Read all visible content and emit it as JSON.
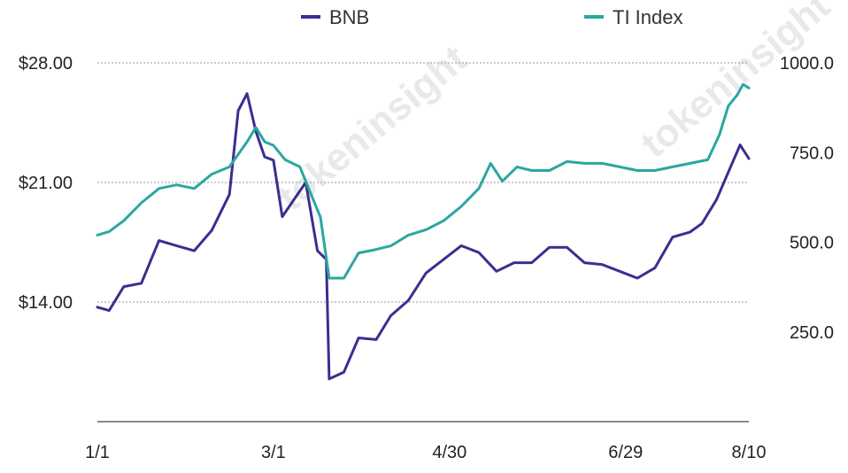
{
  "chart_data": {
    "type": "line",
    "title": "",
    "xlabel": "",
    "ylabel": "",
    "legend": {
      "placement": "top-center"
    },
    "grid": true,
    "x_ticks": [
      "1/1",
      "3/1",
      "4/30",
      "6/29",
      "8/10"
    ],
    "x_domain": [
      "1/1",
      "8/10"
    ],
    "y_left": {
      "ticks": [
        "$28.00",
        "$21.00",
        "$14.00"
      ],
      "range": [
        7,
        28
      ]
    },
    "y_right": {
      "ticks": [
        "1000.0",
        "750.0",
        "500.0",
        "250.0"
      ],
      "range": [
        0,
        1000
      ]
    },
    "series": [
      {
        "name": "BNB",
        "axis": "left",
        "color": "#3b2e8f",
        "points": [
          [
            "1/1",
            13.7
          ],
          [
            "1/5",
            13.5
          ],
          [
            "1/10",
            14.9
          ],
          [
            "1/16",
            15.1
          ],
          [
            "1/22",
            17.6
          ],
          [
            "1/28",
            17.3
          ],
          [
            "2/3",
            17.0
          ],
          [
            "2/9",
            18.2
          ],
          [
            "2/15",
            20.3
          ],
          [
            "2/18",
            25.2
          ],
          [
            "2/21",
            26.2
          ],
          [
            "2/24",
            24.0
          ],
          [
            "2/27",
            22.5
          ],
          [
            "3/1",
            22.3
          ],
          [
            "3/4",
            19.0
          ],
          [
            "3/8",
            20.0
          ],
          [
            "3/12",
            21.0
          ],
          [
            "3/16",
            17.0
          ],
          [
            "3/19",
            16.5
          ],
          [
            "3/20",
            9.5
          ],
          [
            "3/25",
            9.9
          ],
          [
            "3/30",
            11.9
          ],
          [
            "4/5",
            11.8
          ],
          [
            "4/10",
            13.2
          ],
          [
            "4/16",
            14.1
          ],
          [
            "4/22",
            15.7
          ],
          [
            "4/28",
            16.5
          ],
          [
            "5/4",
            17.3
          ],
          [
            "5/10",
            16.9
          ],
          [
            "5/16",
            15.8
          ],
          [
            "5/22",
            16.3
          ],
          [
            "5/28",
            16.3
          ],
          [
            "6/3",
            17.2
          ],
          [
            "6/9",
            17.2
          ],
          [
            "6/15",
            16.3
          ],
          [
            "6/21",
            16.2
          ],
          [
            "6/27",
            15.8
          ],
          [
            "7/3",
            15.4
          ],
          [
            "7/9",
            16.0
          ],
          [
            "7/15",
            17.8
          ],
          [
            "7/21",
            18.1
          ],
          [
            "7/25",
            18.6
          ],
          [
            "7/30",
            20.0
          ],
          [
            "8/4",
            22.0
          ],
          [
            "8/7",
            23.2
          ],
          [
            "8/10",
            22.4
          ]
        ]
      },
      {
        "name": "TI Index",
        "axis": "right",
        "color": "#2aa79f",
        "points": [
          [
            "1/1",
            520
          ],
          [
            "1/5",
            530
          ],
          [
            "1/10",
            560
          ],
          [
            "1/16",
            610
          ],
          [
            "1/22",
            650
          ],
          [
            "1/28",
            660
          ],
          [
            "2/3",
            650
          ],
          [
            "2/9",
            690
          ],
          [
            "2/15",
            710
          ],
          [
            "2/21",
            780
          ],
          [
            "2/24",
            820
          ],
          [
            "2/27",
            780
          ],
          [
            "3/1",
            770
          ],
          [
            "3/5",
            730
          ],
          [
            "3/10",
            710
          ],
          [
            "3/14",
            630
          ],
          [
            "3/17",
            570
          ],
          [
            "3/20",
            400
          ],
          [
            "3/25",
            400
          ],
          [
            "3/30",
            470
          ],
          [
            "4/5",
            480
          ],
          [
            "4/10",
            490
          ],
          [
            "4/16",
            520
          ],
          [
            "4/22",
            535
          ],
          [
            "4/28",
            560
          ],
          [
            "5/4",
            600
          ],
          [
            "5/10",
            650
          ],
          [
            "5/14",
            720
          ],
          [
            "5/18",
            670
          ],
          [
            "5/23",
            710
          ],
          [
            "5/28",
            700
          ],
          [
            "6/3",
            700
          ],
          [
            "6/9",
            725
          ],
          [
            "6/15",
            720
          ],
          [
            "6/21",
            720
          ],
          [
            "6/27",
            710
          ],
          [
            "7/3",
            700
          ],
          [
            "7/9",
            700
          ],
          [
            "7/15",
            710
          ],
          [
            "7/21",
            720
          ],
          [
            "7/27",
            730
          ],
          [
            "7/31",
            800
          ],
          [
            "8/3",
            880
          ],
          [
            "8/6",
            910
          ],
          [
            "8/8",
            940
          ],
          [
            "8/10",
            930
          ]
        ]
      }
    ]
  },
  "legend_items": [
    {
      "name": "BNB",
      "color": "#3b2e8f"
    },
    {
      "name": "TI Index",
      "color": "#2aa79f"
    }
  ],
  "watermark": "tokeninsight"
}
